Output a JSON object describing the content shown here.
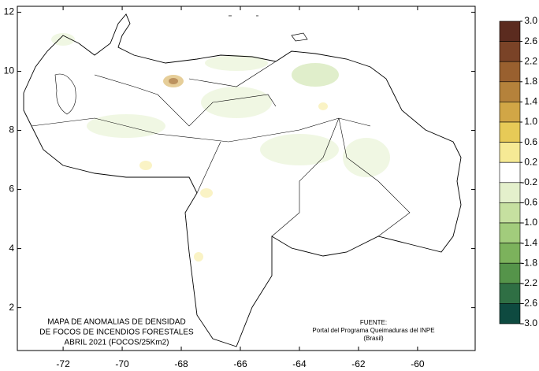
{
  "chart_data": {
    "type": "map",
    "title_lines": [
      "MAPA DE ANOMALIAS DE DENSIDAD",
      "DE FOCOS DE INCENDIOS FORESTALES",
      "ABRIL 2021 (FOCOS/25Km2)"
    ],
    "source_lines": [
      "FUENTE:",
      "Portal del Programa Queimaduras del INPE",
      "(Brasil)"
    ],
    "xlim": [
      -73.55,
      -58.05
    ],
    "ylim": [
      0.55,
      12.2
    ],
    "xticks": [
      -72,
      -70,
      -68,
      -66,
      -64,
      -62,
      -60
    ],
    "yticks": [
      2,
      4,
      6,
      8,
      10,
      12
    ],
    "colorbar": {
      "ticks": [
        {
          "value": 3,
          "label": "3.0"
        },
        2.6,
        2.2,
        1.8,
        1.4,
        {
          "value": 1,
          "label": "1.0"
        },
        0.6,
        0.2,
        -0.2,
        -0.6,
        {
          "value": -1,
          "label": "-1.0"
        },
        -1.4,
        -1.8,
        -2.2,
        -2.6,
        {
          "value": -3,
          "label": "-3.0"
        }
      ],
      "colors": [
        "#5b2b1f",
        "#7a4327",
        "#99602f",
        "#b5823b",
        "#d1a646",
        "#e7ca57",
        "#f6ea95",
        "#ffffff",
        "#e4f0cc",
        "#c6e0a0",
        "#a2cc7c",
        "#7cb25c",
        "#55944a",
        "#2f6f44",
        "#0e4a40"
      ]
    }
  }
}
